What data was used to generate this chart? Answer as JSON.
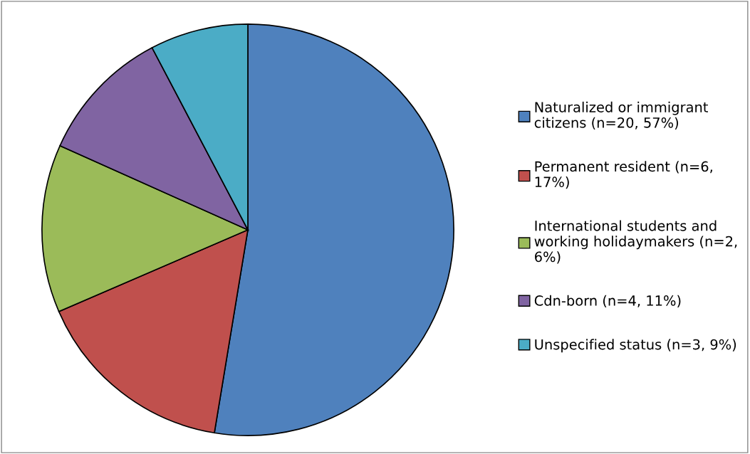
{
  "chart_data": {
    "type": "pie",
    "categories": [
      "Naturalized or immigrant\ncitizens (n=20, 57%)",
      "Permanent resident (n=6,\n17%)",
      "International students and\nworking holidaymakers (n=2,\n6%)",
      "Cdn-born (n=4, 11%)",
      "Unspecified status (n=3, 9%)"
    ],
    "values": [
      52.6,
      15.9,
      13.2,
      10.6,
      7.7
    ],
    "colors": [
      "#4f81bd",
      "#c0504d",
      "#9bbb59",
      "#8064a2",
      "#4bacc6"
    ],
    "legend": "right"
  }
}
